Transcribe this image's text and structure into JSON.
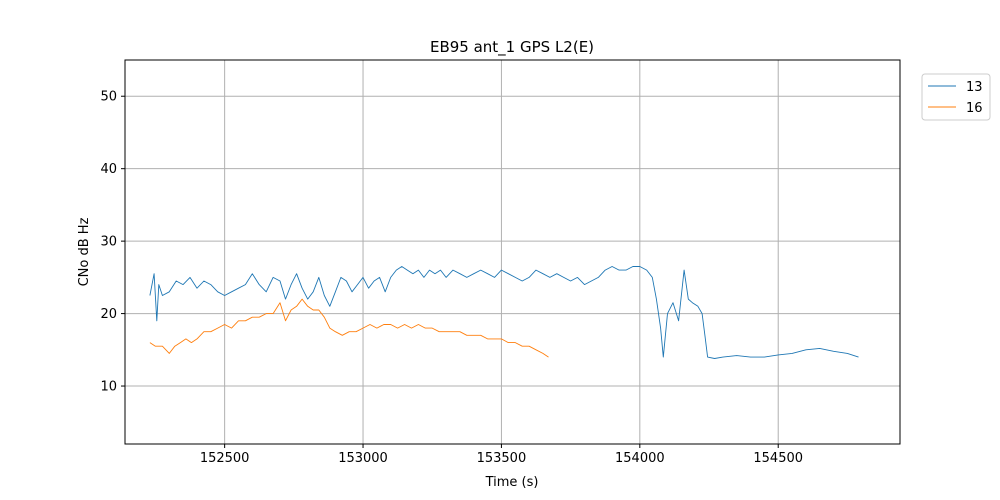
{
  "chart_data": {
    "type": "line",
    "title": "EB95 ant_1 GPS L2(E)",
    "xlabel": "Time (s)",
    "ylabel": "CNo dB Hz",
    "xlim": [
      152140,
      154940
    ],
    "ylim": [
      2,
      55
    ],
    "xticks": [
      152500,
      153000,
      153500,
      154000,
      154500
    ],
    "yticks": [
      10,
      20,
      30,
      40,
      50
    ],
    "grid": true,
    "legend_position": "outside-top-right",
    "series": [
      {
        "name": "13",
        "color": "#1f77b4",
        "points": [
          [
            152230,
            22.5
          ],
          [
            152245,
            25.5
          ],
          [
            152255,
            19.0
          ],
          [
            152262,
            24.0
          ],
          [
            152275,
            22.5
          ],
          [
            152300,
            23.0
          ],
          [
            152325,
            24.5
          ],
          [
            152350,
            24.0
          ],
          [
            152375,
            25.0
          ],
          [
            152400,
            23.5
          ],
          [
            152425,
            24.5
          ],
          [
            152450,
            24.0
          ],
          [
            152475,
            23.0
          ],
          [
            152500,
            22.5
          ],
          [
            152525,
            23.0
          ],
          [
            152550,
            23.5
          ],
          [
            152575,
            24.0
          ],
          [
            152600,
            25.5
          ],
          [
            152625,
            24.0
          ],
          [
            152650,
            23.0
          ],
          [
            152675,
            25.0
          ],
          [
            152700,
            24.5
          ],
          [
            152720,
            22.0
          ],
          [
            152740,
            24.0
          ],
          [
            152760,
            25.5
          ],
          [
            152780,
            23.5
          ],
          [
            152800,
            22.0
          ],
          [
            152820,
            23.0
          ],
          [
            152840,
            25.0
          ],
          [
            152860,
            22.5
          ],
          [
            152880,
            21.0
          ],
          [
            152900,
            23.0
          ],
          [
            152920,
            25.0
          ],
          [
            152940,
            24.5
          ],
          [
            152960,
            23.0
          ],
          [
            152980,
            24.0
          ],
          [
            153000,
            25.0
          ],
          [
            153020,
            23.5
          ],
          [
            153040,
            24.5
          ],
          [
            153060,
            25.0
          ],
          [
            153080,
            23.0
          ],
          [
            153100,
            25.0
          ],
          [
            153120,
            26.0
          ],
          [
            153140,
            26.5
          ],
          [
            153160,
            26.0
          ],
          [
            153180,
            25.5
          ],
          [
            153200,
            26.0
          ],
          [
            153220,
            25.0
          ],
          [
            153240,
            26.0
          ],
          [
            153260,
            25.5
          ],
          [
            153280,
            26.0
          ],
          [
            153300,
            25.0
          ],
          [
            153325,
            26.0
          ],
          [
            153350,
            25.5
          ],
          [
            153375,
            25.0
          ],
          [
            153400,
            25.5
          ],
          [
            153425,
            26.0
          ],
          [
            153450,
            25.5
          ],
          [
            153475,
            25.0
          ],
          [
            153500,
            26.0
          ],
          [
            153525,
            25.5
          ],
          [
            153550,
            25.0
          ],
          [
            153575,
            24.5
          ],
          [
            153600,
            25.0
          ],
          [
            153625,
            26.0
          ],
          [
            153650,
            25.5
          ],
          [
            153675,
            25.0
          ],
          [
            153700,
            25.5
          ],
          [
            153725,
            25.0
          ],
          [
            153750,
            24.5
          ],
          [
            153775,
            25.0
          ],
          [
            153800,
            24.0
          ],
          [
            153825,
            24.5
          ],
          [
            153850,
            25.0
          ],
          [
            153875,
            26.0
          ],
          [
            153900,
            26.5
          ],
          [
            153925,
            26.0
          ],
          [
            153950,
            26.0
          ],
          [
            153975,
            26.5
          ],
          [
            154000,
            26.5
          ],
          [
            154025,
            26.0
          ],
          [
            154045,
            25.0
          ],
          [
            154060,
            22.0
          ],
          [
            154075,
            18.0
          ],
          [
            154085,
            14.0
          ],
          [
            154100,
            20.0
          ],
          [
            154120,
            21.5
          ],
          [
            154140,
            19.0
          ],
          [
            154160,
            26.0
          ],
          [
            154175,
            22.0
          ],
          [
            154190,
            21.5
          ],
          [
            154210,
            21.0
          ],
          [
            154225,
            20.0
          ],
          [
            154235,
            17.0
          ],
          [
            154245,
            14.0
          ],
          [
            154270,
            13.8
          ],
          [
            154300,
            14.0
          ],
          [
            154350,
            14.2
          ],
          [
            154400,
            14.0
          ],
          [
            154450,
            14.0
          ],
          [
            154500,
            14.3
          ],
          [
            154550,
            14.5
          ],
          [
            154600,
            15.0
          ],
          [
            154650,
            15.2
          ],
          [
            154700,
            14.8
          ],
          [
            154750,
            14.5
          ],
          [
            154790,
            14.0
          ]
        ]
      },
      {
        "name": "16",
        "color": "#ff7f0e",
        "points": [
          [
            152230,
            16.0
          ],
          [
            152250,
            15.5
          ],
          [
            152275,
            15.5
          ],
          [
            152300,
            14.5
          ],
          [
            152320,
            15.5
          ],
          [
            152340,
            16.0
          ],
          [
            152360,
            16.5
          ],
          [
            152380,
            16.0
          ],
          [
            152400,
            16.5
          ],
          [
            152425,
            17.5
          ],
          [
            152450,
            17.5
          ],
          [
            152475,
            18.0
          ],
          [
            152500,
            18.5
          ],
          [
            152525,
            18.0
          ],
          [
            152550,
            19.0
          ],
          [
            152575,
            19.0
          ],
          [
            152600,
            19.5
          ],
          [
            152625,
            19.5
          ],
          [
            152650,
            20.0
          ],
          [
            152675,
            20.0
          ],
          [
            152700,
            21.5
          ],
          [
            152720,
            19.0
          ],
          [
            152740,
            20.5
          ],
          [
            152760,
            21.0
          ],
          [
            152780,
            22.0
          ],
          [
            152800,
            21.0
          ],
          [
            152820,
            20.5
          ],
          [
            152840,
            20.5
          ],
          [
            152860,
            19.5
          ],
          [
            152880,
            18.0
          ],
          [
            152900,
            17.5
          ],
          [
            152925,
            17.0
          ],
          [
            152950,
            17.5
          ],
          [
            152975,
            17.5
          ],
          [
            153000,
            18.0
          ],
          [
            153025,
            18.5
          ],
          [
            153050,
            18.0
          ],
          [
            153075,
            18.5
          ],
          [
            153100,
            18.5
          ],
          [
            153125,
            18.0
          ],
          [
            153150,
            18.5
          ],
          [
            153175,
            18.0
          ],
          [
            153200,
            18.5
          ],
          [
            153225,
            18.0
          ],
          [
            153250,
            18.0
          ],
          [
            153275,
            17.5
          ],
          [
            153300,
            17.5
          ],
          [
            153325,
            17.5
          ],
          [
            153350,
            17.5
          ],
          [
            153375,
            17.0
          ],
          [
            153400,
            17.0
          ],
          [
            153425,
            17.0
          ],
          [
            153450,
            16.5
          ],
          [
            153475,
            16.5
          ],
          [
            153500,
            16.5
          ],
          [
            153525,
            16.0
          ],
          [
            153550,
            16.0
          ],
          [
            153575,
            15.5
          ],
          [
            153600,
            15.5
          ],
          [
            153625,
            15.0
          ],
          [
            153650,
            14.5
          ],
          [
            153670,
            14.0
          ]
        ]
      }
    ]
  }
}
